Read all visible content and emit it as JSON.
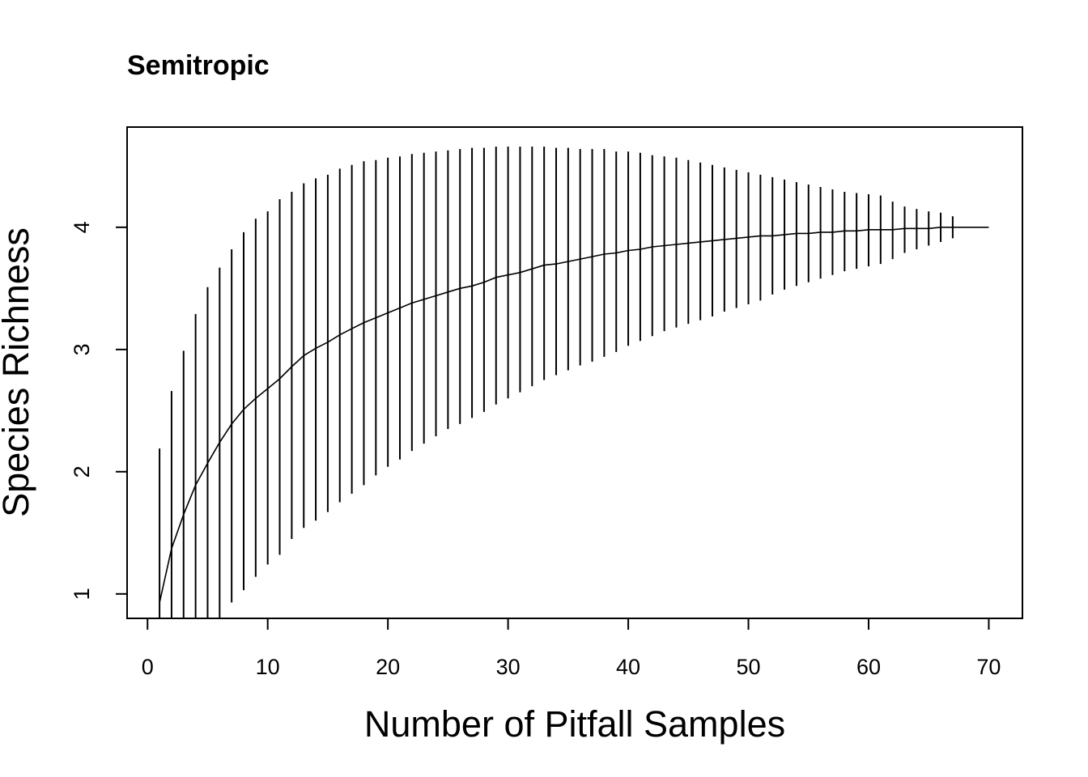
{
  "chart_data": {
    "type": "line",
    "title": "Semitropic",
    "xlabel": "Number of Pitfall Samples",
    "ylabel": "Species Richness",
    "xlim": [
      -1.7,
      72.8
    ],
    "ylim": [
      0.8,
      4.82
    ],
    "x_ticks": [
      0,
      10,
      20,
      30,
      40,
      50,
      60,
      70
    ],
    "y_ticks": [
      1,
      2,
      3,
      4
    ],
    "grid": false,
    "legend": "none",
    "series": [
      {
        "role": "mean",
        "x": [
          1,
          2,
          3,
          4,
          5,
          6,
          7,
          8,
          9,
          10,
          11,
          12,
          13,
          14,
          15,
          16,
          17,
          18,
          19,
          20,
          21,
          22,
          23,
          24,
          25,
          26,
          27,
          28,
          29,
          30,
          31,
          32,
          33,
          34,
          35,
          36,
          37,
          38,
          39,
          40,
          41,
          42,
          43,
          44,
          45,
          46,
          47,
          48,
          49,
          50,
          51,
          52,
          53,
          54,
          55,
          56,
          57,
          58,
          59,
          60,
          61,
          62,
          63,
          64,
          65,
          66,
          67,
          68,
          69,
          70
        ],
        "y": [
          0.93,
          1.37,
          1.65,
          1.89,
          2.07,
          2.24,
          2.39,
          2.51,
          2.6,
          2.68,
          2.76,
          2.86,
          2.95,
          3.01,
          3.06,
          3.12,
          3.17,
          3.22,
          3.26,
          3.3,
          3.34,
          3.38,
          3.41,
          3.44,
          3.47,
          3.5,
          3.52,
          3.55,
          3.59,
          3.61,
          3.63,
          3.66,
          3.69,
          3.7,
          3.72,
          3.74,
          3.76,
          3.78,
          3.79,
          3.81,
          3.82,
          3.84,
          3.85,
          3.86,
          3.87,
          3.88,
          3.89,
          3.9,
          3.91,
          3.92,
          3.93,
          3.93,
          3.94,
          3.95,
          3.95,
          3.96,
          3.96,
          3.97,
          3.97,
          3.98,
          3.98,
          3.98,
          3.99,
          3.99,
          3.99,
          4.0,
          4.0,
          4.0,
          4.0,
          4.0
        ]
      },
      {
        "role": "error-bars",
        "x": [
          1,
          2,
          3,
          4,
          5,
          6,
          7,
          8,
          9,
          10,
          11,
          12,
          13,
          14,
          15,
          16,
          17,
          18,
          19,
          20,
          21,
          22,
          23,
          24,
          25,
          26,
          27,
          28,
          29,
          30,
          31,
          32,
          33,
          34,
          35,
          36,
          37,
          38,
          39,
          40,
          41,
          42,
          43,
          44,
          45,
          46,
          47,
          48,
          49,
          50,
          51,
          52,
          53,
          54,
          55,
          56,
          57,
          58,
          59,
          60,
          61,
          62,
          63,
          64,
          65,
          66,
          67
        ],
        "upper": [
          2.19,
          2.66,
          2.99,
          3.29,
          3.51,
          3.67,
          3.82,
          3.96,
          4.07,
          4.13,
          4.23,
          4.29,
          4.36,
          4.4,
          4.43,
          4.48,
          4.51,
          4.54,
          4.55,
          4.57,
          4.58,
          4.6,
          4.61,
          4.62,
          4.63,
          4.64,
          4.65,
          4.65,
          4.66,
          4.66,
          4.66,
          4.66,
          4.66,
          4.65,
          4.65,
          4.64,
          4.64,
          4.64,
          4.62,
          4.62,
          4.61,
          4.59,
          4.58,
          4.57,
          4.55,
          4.53,
          4.51,
          4.49,
          4.47,
          4.45,
          4.43,
          4.41,
          4.39,
          4.37,
          4.35,
          4.33,
          4.31,
          4.29,
          4.28,
          4.27,
          4.26,
          4.21,
          4.17,
          4.15,
          4.13,
          4.12,
          4.09
        ],
        "lower": [
          0.7,
          0.7,
          0.7,
          0.7,
          0.7,
          0.7,
          0.93,
          1.03,
          1.14,
          1.24,
          1.32,
          1.45,
          1.54,
          1.6,
          1.67,
          1.75,
          1.82,
          1.89,
          1.97,
          2.04,
          2.1,
          2.17,
          2.23,
          2.29,
          2.35,
          2.39,
          2.44,
          2.49,
          2.55,
          2.6,
          2.65,
          2.7,
          2.75,
          2.79,
          2.83,
          2.87,
          2.9,
          2.94,
          2.98,
          3.03,
          3.07,
          3.11,
          3.15,
          3.18,
          3.21,
          3.24,
          3.27,
          3.31,
          3.34,
          3.37,
          3.4,
          3.45,
          3.49,
          3.52,
          3.55,
          3.58,
          3.61,
          3.64,
          3.66,
          3.68,
          3.7,
          3.74,
          3.79,
          3.82,
          3.85,
          3.88,
          3.91
        ]
      }
    ]
  }
}
